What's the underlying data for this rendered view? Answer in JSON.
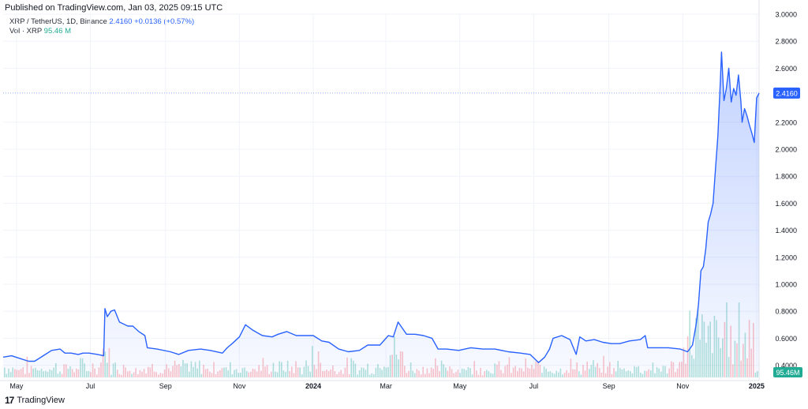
{
  "header": {
    "published": "Published on TradingView.com, Jan 03, 2025 09:15 UTC",
    "symbol_line": "XRP / TetherUS, 1D, Binance",
    "last_price": "2.4160",
    "change": "+0.0136 (+0.57%)",
    "vol_label": "Vol · XRP",
    "vol_value": "95.46 M"
  },
  "footer": {
    "logo": "17",
    "brand": "TradingView"
  },
  "colors": {
    "line": "#2962ff",
    "area": "#2962ff",
    "volume_up": "#22ab94",
    "volume_down": "#f7525f",
    "price_badge": "#2962ff",
    "vol_badge": "#22ab94"
  },
  "chart_data": {
    "type": "area",
    "title": "XRP / TetherUS, 1D, Binance",
    "xlabel": "",
    "ylabel": "",
    "x_start": "2023-04-20",
    "x_end": "2025-01-03",
    "ylim": [
      0.31,
      3.0
    ],
    "y_ticks": [
      "3.0000",
      "2.8000",
      "2.6000",
      "2.2000",
      "2.0000",
      "1.8000",
      "1.6000",
      "1.4000",
      "1.2000",
      "1.0000",
      "0.8000",
      "0.6000",
      "0.4000"
    ],
    "x_ticks": [
      {
        "label": "May",
        "date": "2023-05-01"
      },
      {
        "label": "Jul",
        "date": "2023-07-01"
      },
      {
        "label": "Sep",
        "date": "2023-09-01"
      },
      {
        "label": "Nov",
        "date": "2023-11-01"
      },
      {
        "label": "2024",
        "date": "2024-01-01"
      },
      {
        "label": "Mar",
        "date": "2024-03-01"
      },
      {
        "label": "May",
        "date": "2024-05-01"
      },
      {
        "label": "Jul",
        "date": "2024-07-01"
      },
      {
        "label": "Sep",
        "date": "2024-09-01"
      },
      {
        "label": "Nov",
        "date": "2024-11-01"
      },
      {
        "label": "2025",
        "date": "2025-01-01"
      }
    ],
    "last_price_label": "2.4160",
    "volume_label": "95.46M",
    "grid": true,
    "series": [
      {
        "name": "XRP / TetherUS",
        "points": [
          [
            "2023-04-20",
            0.46
          ],
          [
            "2023-04-27",
            0.47
          ],
          [
            "2023-05-04",
            0.45
          ],
          [
            "2023-05-11",
            0.43
          ],
          [
            "2023-05-16",
            0.43
          ],
          [
            "2023-05-23",
            0.47
          ],
          [
            "2023-05-30",
            0.51
          ],
          [
            "2023-06-06",
            0.52
          ],
          [
            "2023-06-10",
            0.49
          ],
          [
            "2023-06-15",
            0.49
          ],
          [
            "2023-06-21",
            0.48
          ],
          [
            "2023-06-25",
            0.49
          ],
          [
            "2023-06-30",
            0.49
          ],
          [
            "2023-07-07",
            0.48
          ],
          [
            "2023-07-12",
            0.47
          ],
          [
            "2023-07-13",
            0.82
          ],
          [
            "2023-07-15",
            0.76
          ],
          [
            "2023-07-18",
            0.8
          ],
          [
            "2023-07-21",
            0.81
          ],
          [
            "2023-07-25",
            0.72
          ],
          [
            "2023-08-01",
            0.69
          ],
          [
            "2023-08-05",
            0.69
          ],
          [
            "2023-08-10",
            0.65
          ],
          [
            "2023-08-15",
            0.62
          ],
          [
            "2023-08-17",
            0.53
          ],
          [
            "2023-08-25",
            0.52
          ],
          [
            "2023-09-05",
            0.5
          ],
          [
            "2023-09-12",
            0.48
          ],
          [
            "2023-09-20",
            0.51
          ],
          [
            "2023-09-30",
            0.52
          ],
          [
            "2023-10-08",
            0.51
          ],
          [
            "2023-10-18",
            0.49
          ],
          [
            "2023-10-22",
            0.53
          ],
          [
            "2023-10-26",
            0.56
          ],
          [
            "2023-11-01",
            0.61
          ],
          [
            "2023-11-06",
            0.7
          ],
          [
            "2023-11-12",
            0.66
          ],
          [
            "2023-11-20",
            0.62
          ],
          [
            "2023-11-28",
            0.61
          ],
          [
            "2023-12-03",
            0.63
          ],
          [
            "2023-12-10",
            0.65
          ],
          [
            "2023-12-18",
            0.62
          ],
          [
            "2023-12-25",
            0.62
          ],
          [
            "2024-01-01",
            0.62
          ],
          [
            "2024-01-08",
            0.58
          ],
          [
            "2024-01-14",
            0.57
          ],
          [
            "2024-01-22",
            0.52
          ],
          [
            "2024-01-30",
            0.5
          ],
          [
            "2024-02-08",
            0.51
          ],
          [
            "2024-02-15",
            0.55
          ],
          [
            "2024-02-25",
            0.55
          ],
          [
            "2024-03-03",
            0.62
          ],
          [
            "2024-03-07",
            0.61
          ],
          [
            "2024-03-11",
            0.72
          ],
          [
            "2024-03-18",
            0.63
          ],
          [
            "2024-03-25",
            0.63
          ],
          [
            "2024-04-01",
            0.62
          ],
          [
            "2024-04-08",
            0.6
          ],
          [
            "2024-04-13",
            0.52
          ],
          [
            "2024-04-20",
            0.52
          ],
          [
            "2024-04-30",
            0.51
          ],
          [
            "2024-05-10",
            0.53
          ],
          [
            "2024-05-20",
            0.52
          ],
          [
            "2024-05-30",
            0.52
          ],
          [
            "2024-06-10",
            0.5
          ],
          [
            "2024-06-20",
            0.49
          ],
          [
            "2024-06-28",
            0.48
          ],
          [
            "2024-07-05",
            0.42
          ],
          [
            "2024-07-10",
            0.46
          ],
          [
            "2024-07-14",
            0.52
          ],
          [
            "2024-07-17",
            0.6
          ],
          [
            "2024-07-24",
            0.62
          ],
          [
            "2024-07-31",
            0.59
          ],
          [
            "2024-08-05",
            0.48
          ],
          [
            "2024-08-08",
            0.61
          ],
          [
            "2024-08-13",
            0.58
          ],
          [
            "2024-08-20",
            0.59
          ],
          [
            "2024-08-27",
            0.57
          ],
          [
            "2024-09-03",
            0.56
          ],
          [
            "2024-09-10",
            0.56
          ],
          [
            "2024-09-18",
            0.58
          ],
          [
            "2024-09-27",
            0.59
          ],
          [
            "2024-10-01",
            0.62
          ],
          [
            "2024-10-03",
            0.53
          ],
          [
            "2024-10-10",
            0.53
          ],
          [
            "2024-10-20",
            0.53
          ],
          [
            "2024-10-30",
            0.52
          ],
          [
            "2024-11-05",
            0.5
          ],
          [
            "2024-11-09",
            0.55
          ],
          [
            "2024-11-12",
            0.7
          ],
          [
            "2024-11-14",
            0.85
          ],
          [
            "2024-11-16",
            1.1
          ],
          [
            "2024-11-18",
            1.13
          ],
          [
            "2024-11-20",
            1.26
          ],
          [
            "2024-11-22",
            1.46
          ],
          [
            "2024-11-24",
            1.52
          ],
          [
            "2024-11-26",
            1.6
          ],
          [
            "2024-11-28",
            1.85
          ],
          [
            "2024-11-30",
            2.1
          ],
          [
            "2024-12-02",
            2.5
          ],
          [
            "2024-12-03",
            2.72
          ],
          [
            "2024-12-05",
            2.36
          ],
          [
            "2024-12-07",
            2.45
          ],
          [
            "2024-12-09",
            2.6
          ],
          [
            "2024-12-11",
            2.35
          ],
          [
            "2024-12-13",
            2.45
          ],
          [
            "2024-12-15",
            2.4
          ],
          [
            "2024-12-17",
            2.55
          ],
          [
            "2024-12-19",
            2.35
          ],
          [
            "2024-12-20",
            2.2
          ],
          [
            "2024-12-22",
            2.3
          ],
          [
            "2024-12-24",
            2.25
          ],
          [
            "2024-12-26",
            2.18
          ],
          [
            "2024-12-28",
            2.12
          ],
          [
            "2024-12-30",
            2.05
          ],
          [
            "2025-01-01",
            2.38
          ],
          [
            "2025-01-03",
            2.416
          ]
        ]
      }
    ]
  }
}
